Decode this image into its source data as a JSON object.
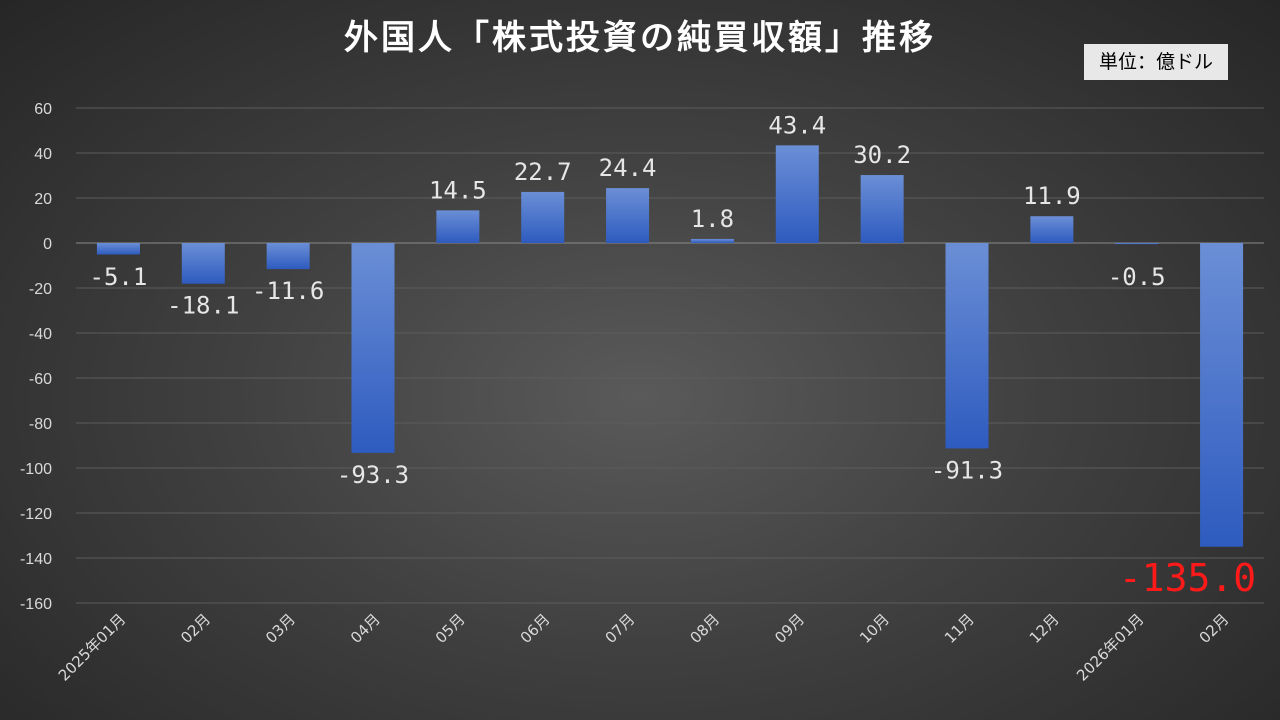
{
  "title": "外国人「株式投資の純買収額」推移",
  "unit": "単位：億ドル",
  "colors": {
    "bar_top": "#6b8fd6",
    "bar_bottom": "#2e5bbf",
    "highlight_label": "#ff1a1a"
  },
  "chart_data": {
    "type": "bar",
    "title": "外国人「株式投資の純買収額」推移",
    "xlabel": "",
    "ylabel": "",
    "ylim": [
      -160,
      60
    ],
    "yticks": [
      60,
      40,
      20,
      0,
      -20,
      -40,
      -60,
      -80,
      -100,
      -120,
      -140,
      -160
    ],
    "grid": true,
    "legend": "none",
    "categories": [
      "2025年01月",
      "02月",
      "03月",
      "04月",
      "05月",
      "06月",
      "07月",
      "08月",
      "09月",
      "10月",
      "11月",
      "12月",
      "2026年01月",
      "02月"
    ],
    "values": [
      -5.1,
      -18.1,
      -11.6,
      -93.3,
      14.5,
      22.7,
      24.4,
      1.8,
      43.4,
      30.2,
      -91.3,
      11.9,
      -0.5,
      -135.0
    ],
    "data_labels": [
      "-5.1",
      "-18.1",
      "-11.6",
      "-93.3",
      "14.5",
      "22.7",
      "24.4",
      "1.8",
      "43.4",
      "30.2",
      "-91.3",
      "11.9",
      "-0.5",
      "-135.0"
    ],
    "highlight_index": 13
  }
}
